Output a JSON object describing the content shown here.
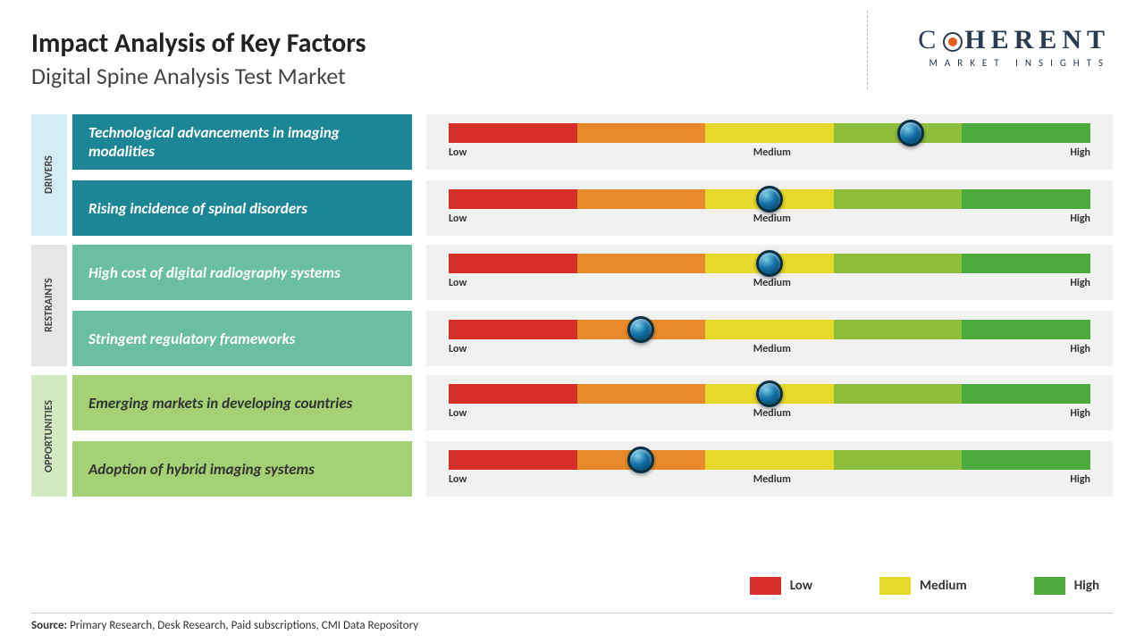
{
  "header": {
    "title": "Impact Analysis of Key Factors",
    "subtitle": "Digital Spine Analysis Test Market"
  },
  "logo": {
    "main": "COHERENT",
    "sub": "MARKET INSIGHTS"
  },
  "scale": {
    "low": "Low",
    "medium": "Medium",
    "high": "High",
    "segment_colors": [
      "#d62f2a",
      "#e88a2a",
      "#e8d82a",
      "#8fbd3c",
      "#4faa3c"
    ]
  },
  "categories": [
    {
      "name": "DRIVERS",
      "bg": "#d4ecf5",
      "factor_bg": "#1c8696",
      "factor_color": "#ffffff",
      "factors": [
        {
          "label": "Technological advancements in imaging modalities",
          "marker_pct": 72
        },
        {
          "label": "Rising incidence of spinal disorders",
          "marker_pct": 50
        }
      ]
    },
    {
      "name": "RESTRAINTS",
      "bg": "#e6e6e6",
      "factor_bg": "#6abfa3",
      "factor_color": "#ffffff",
      "factors": [
        {
          "label": "High cost of digital radiography systems",
          "marker_pct": 50
        },
        {
          "label": "Stringent regulatory frameworks",
          "marker_pct": 30
        }
      ]
    },
    {
      "name": "OPPORTUNITIES",
      "bg": "#d4eac0",
      "factor_bg": "#a5d175",
      "factor_color": "#333333",
      "factors": [
        {
          "label": "Emerging markets in developing countries",
          "marker_pct": 50
        },
        {
          "label": "Adoption of hybrid imaging systems",
          "marker_pct": 30
        }
      ]
    }
  ],
  "legend": {
    "items": [
      {
        "label": "Low",
        "color": "#d62f2a"
      },
      {
        "label": "Medium",
        "color": "#e8d82a"
      },
      {
        "label": "High",
        "color": "#4faa3c"
      }
    ]
  },
  "source": {
    "label": "Source:",
    "text": "Primary Research, Desk Research, Paid subscriptions, CMI Data Repository"
  }
}
